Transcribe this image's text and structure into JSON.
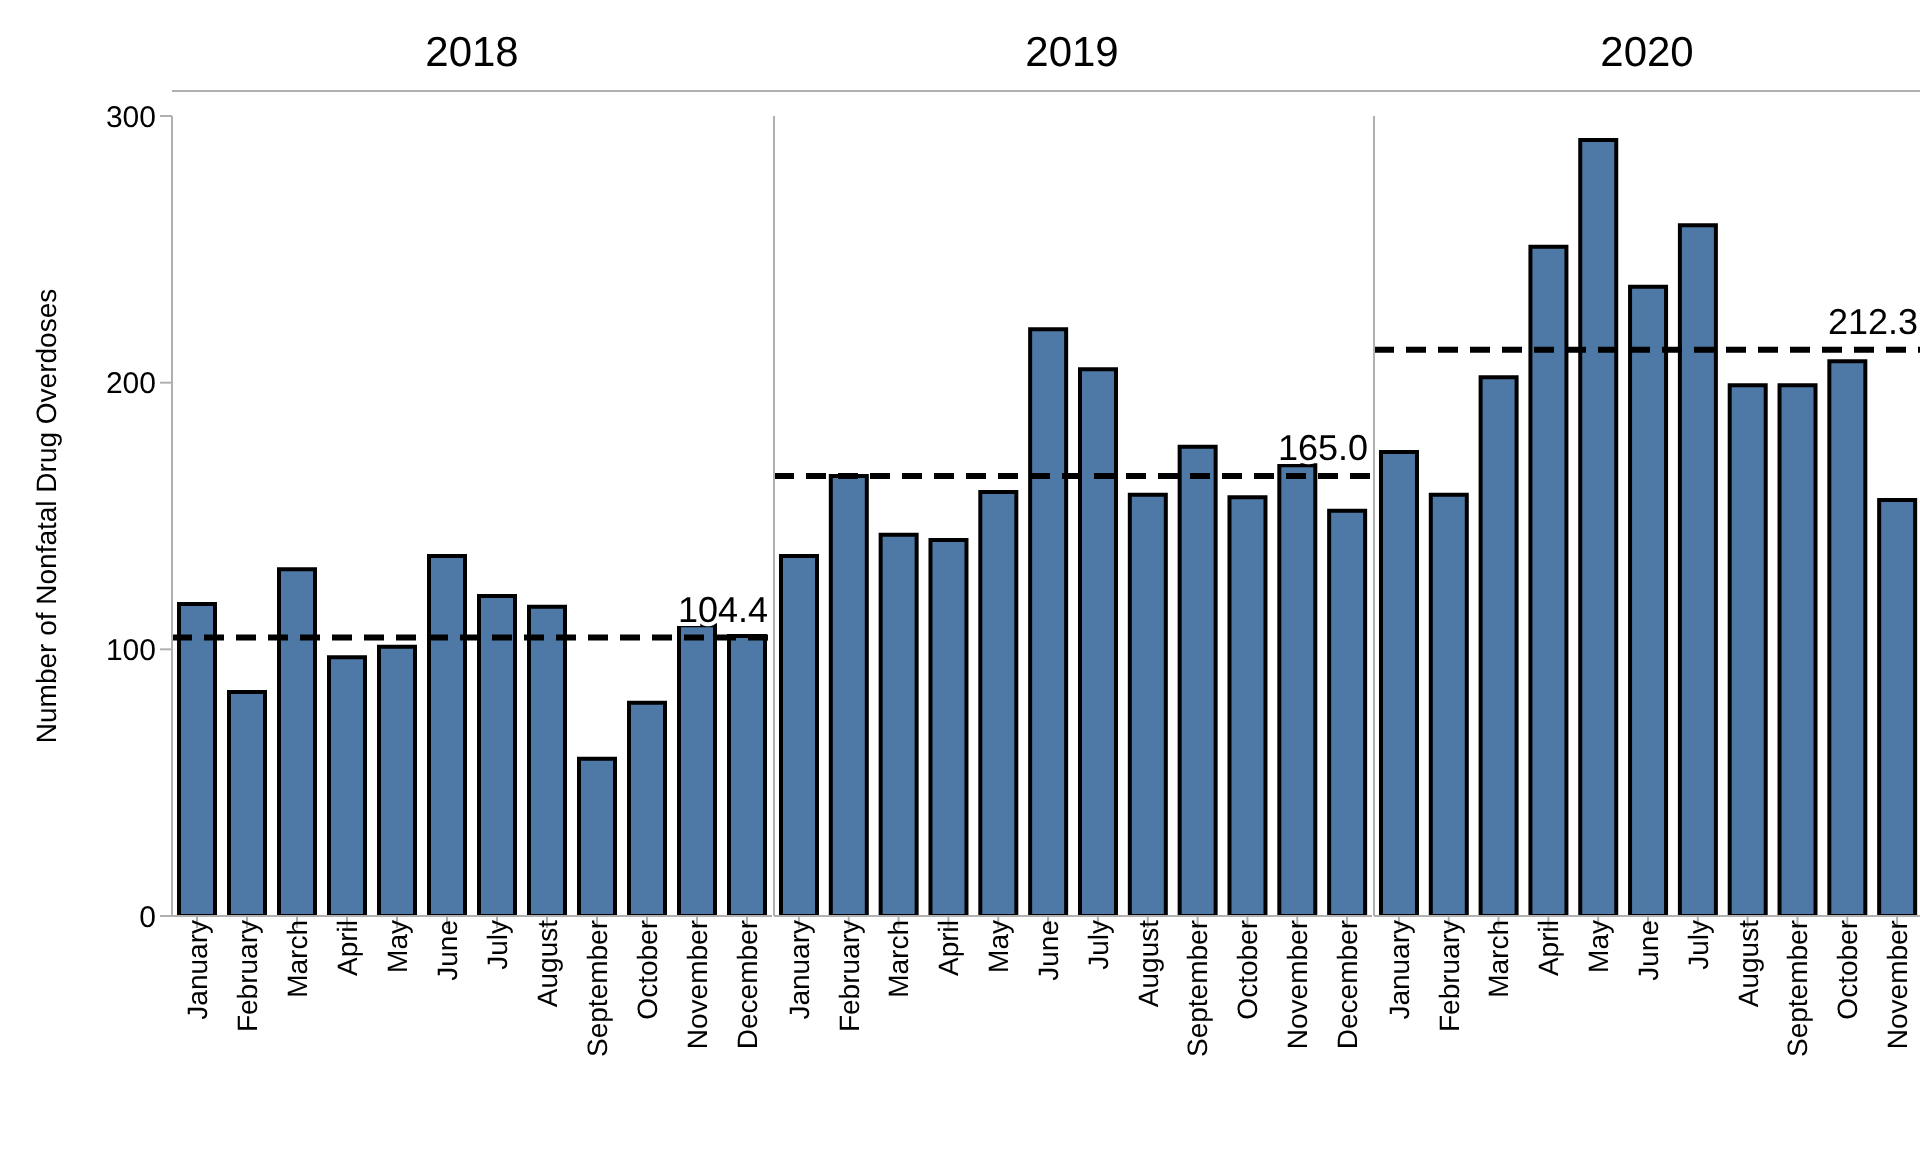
{
  "chart_data": [
    {
      "type": "bar",
      "title": "2018",
      "ylabel": "Number of Nonfatal Drug Overdoses",
      "categories": [
        "January",
        "February",
        "March",
        "April",
        "May",
        "June",
        "July",
        "August",
        "September",
        "October",
        "November",
        "December"
      ],
      "values": [
        117,
        84,
        130,
        97,
        101,
        135,
        120,
        116,
        59,
        80,
        109,
        105
      ],
      "color": "#4e79a7",
      "ylim": [
        0,
        300
      ],
      "yticks": [
        0,
        100,
        200,
        300
      ],
      "grid": false,
      "ref_lines": [
        {
          "axis": "y",
          "value": 104.4,
          "label": "104.4",
          "color": "#000000",
          "line_style": "dashed"
        }
      ]
    },
    {
      "type": "bar",
      "title": "2019",
      "categories": [
        "January",
        "February",
        "March",
        "April",
        "May",
        "June",
        "July",
        "August",
        "September",
        "October",
        "November",
        "December"
      ],
      "values": [
        135,
        165,
        143,
        141,
        159,
        220,
        205,
        158,
        176,
        157,
        169,
        152
      ],
      "color": "#4e79a7",
      "ylim": [
        0,
        300
      ],
      "yticks": [
        0,
        100,
        200,
        300
      ],
      "grid": false,
      "tick_labels": "x",
      "ref_lines": [
        {
          "axis": "y",
          "value": 165.0,
          "label": "165.0",
          "color": "#000000",
          "line_style": "dashed"
        }
      ]
    },
    {
      "type": "bar",
      "title": "2020",
      "categories": [
        "January",
        "February",
        "March",
        "April",
        "May",
        "June",
        "July",
        "August",
        "September",
        "October",
        "November"
      ],
      "values": [
        174,
        158,
        202,
        251,
        291,
        236,
        259,
        199,
        199,
        208,
        156
      ],
      "color": "#4e79a7",
      "ylim": [
        0,
        300
      ],
      "yticks": [
        0,
        100,
        200,
        300
      ],
      "grid": false,
      "tick_labels": "x",
      "ref_lines": [
        {
          "axis": "y",
          "value": 212.3,
          "label": "212.3",
          "color": "#000000",
          "line_style": "dashed"
        }
      ]
    }
  ]
}
